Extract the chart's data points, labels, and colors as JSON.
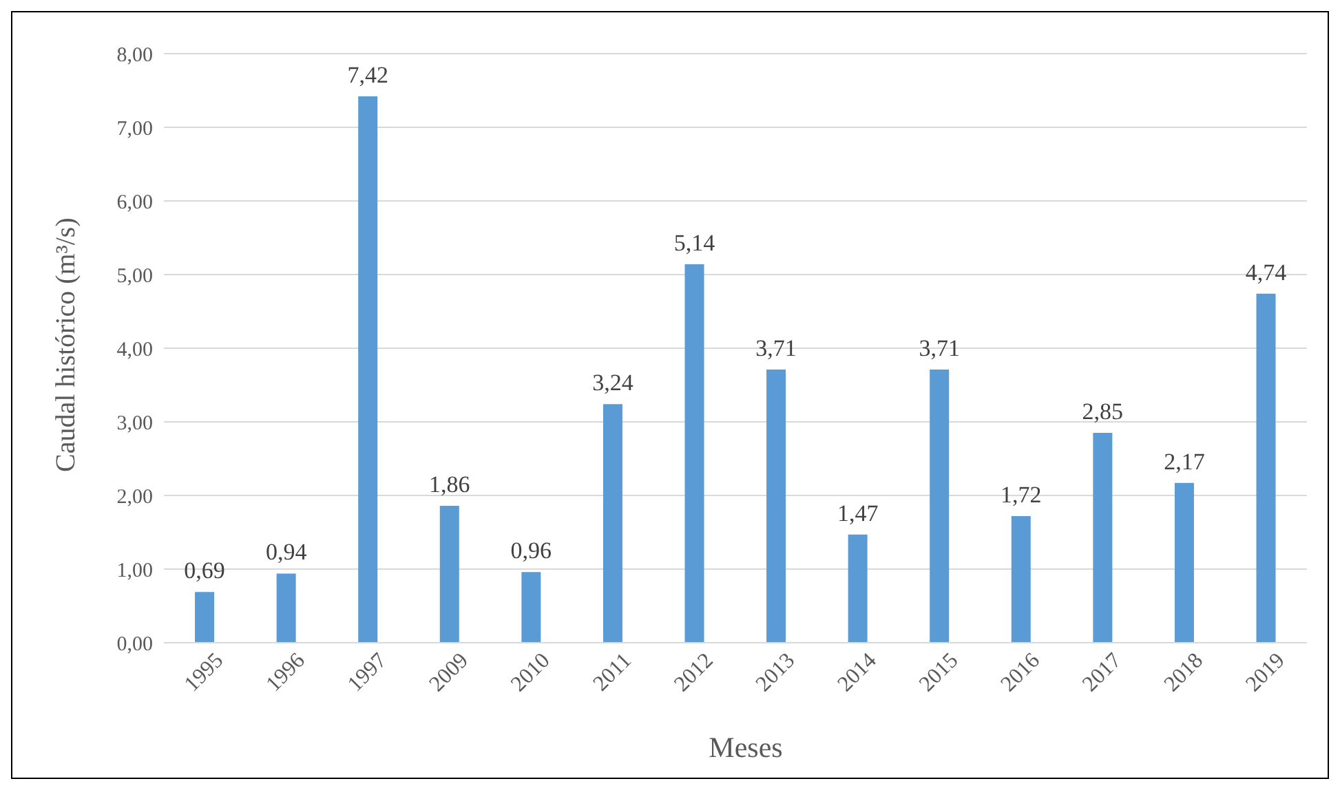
{
  "chart_data": {
    "type": "bar",
    "xlabel": "Meses",
    "ylabel": "Caudal histórico (m³/s)",
    "categories": [
      "1995",
      "1996",
      "1997",
      "2009",
      "2010",
      "2011",
      "2012",
      "2013",
      "2014",
      "2015",
      "2016",
      "2017",
      "2018",
      "2019"
    ],
    "values": [
      0.69,
      0.94,
      7.42,
      1.86,
      0.96,
      3.24,
      5.14,
      3.71,
      1.47,
      3.71,
      1.72,
      2.85,
      2.17,
      4.74
    ],
    "value_labels": [
      "0,69",
      "0,94",
      "7,42",
      "1,86",
      "0,96",
      "3,24",
      "5,14",
      "3,71",
      "1,47",
      "3,71",
      "1,72",
      "2,85",
      "2,17",
      "4,74"
    ],
    "color": "#5b9bd5",
    "ylim": [
      0,
      8
    ],
    "yticks": [
      {
        "value": 0,
        "label": "0,00"
      },
      {
        "value": 1,
        "label": "1,00"
      },
      {
        "value": 2,
        "label": "2,00"
      },
      {
        "value": 3,
        "label": "3,00"
      },
      {
        "value": 4,
        "label": "4,00"
      },
      {
        "value": 5,
        "label": "5,00"
      },
      {
        "value": 6,
        "label": "6,00"
      },
      {
        "value": 7,
        "label": "7,00"
      },
      {
        "value": 8,
        "label": "8,00"
      }
    ],
    "grid": "y",
    "legend": false
  }
}
